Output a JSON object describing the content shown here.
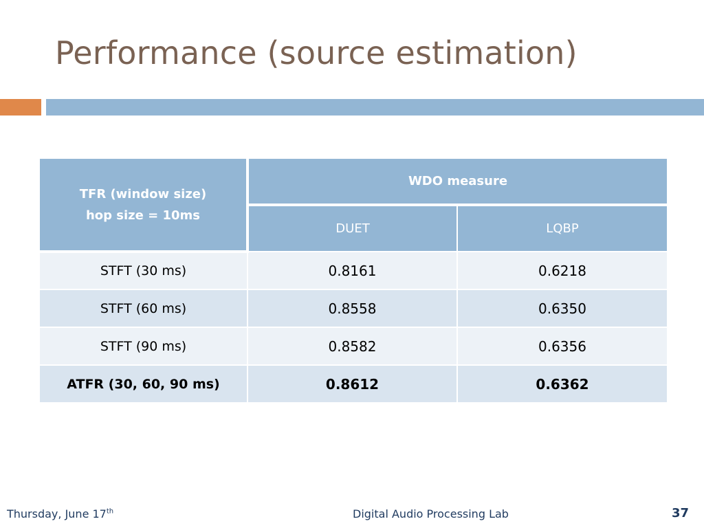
{
  "slide": {
    "title": "Performance (source estimation)"
  },
  "table": {
    "corner_header_line1": "TFR (window size)",
    "corner_header_line2": "hop size = 10ms",
    "group_header": "WDO measure",
    "columns": [
      "DUET",
      "LQBP"
    ],
    "rows": [
      {
        "label": "STFT (30 ms)",
        "duet": "0.8161",
        "lqbp": "0.6218",
        "bold": false
      },
      {
        "label": "STFT (60 ms)",
        "duet": "0.8558",
        "lqbp": "0.6350",
        "bold": false
      },
      {
        "label": "STFT (90 ms)",
        "duet": "0.8582",
        "lqbp": "0.6356",
        "bold": false
      },
      {
        "label": "ATFR (30, 60, 90 ms)",
        "duet": "0.8612",
        "lqbp": "0.6362",
        "bold": true
      }
    ]
  },
  "footer": {
    "date_main": "Thursday, June 17",
    "date_suffix": "th",
    "lab_name": "Digital Audio Processing Lab",
    "page_number": "37"
  },
  "colors": {
    "title": "#7a6253",
    "accent_orange": "#e0884a",
    "accent_blue": "#93b6d4",
    "row_light": "#edf2f7",
    "row_dark": "#d9e4ef",
    "footer_text": "#1f3a5f"
  }
}
